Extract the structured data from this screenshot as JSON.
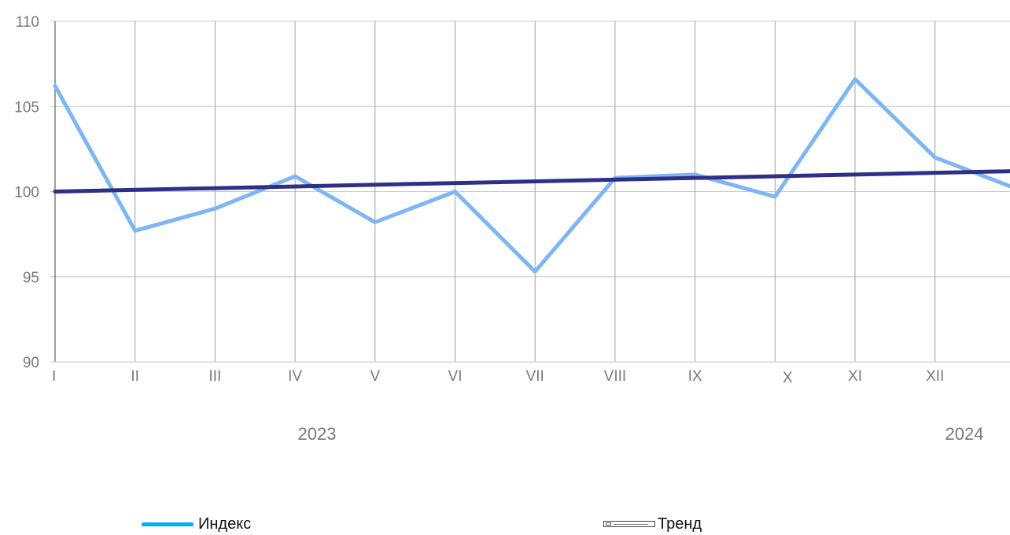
{
  "chart_data": {
    "type": "line",
    "categories": [
      "I",
      "II",
      "III",
      "IV",
      "V",
      "VI",
      "VII",
      "VIII",
      "IX",
      "X",
      "XI",
      "XII"
    ],
    "year_labels": [
      "2023",
      "2024"
    ],
    "ylim": [
      90,
      110
    ],
    "yticks": [
      90,
      95,
      100,
      105,
      110
    ],
    "grid": true,
    "legend_position": "bottom",
    "series": [
      {
        "name": "Индекс",
        "color": "#7eb6f4",
        "x": [
          0,
          1,
          2,
          3,
          4,
          5,
          6,
          7,
          8,
          9,
          10,
          11,
          12
        ],
        "values": [
          106.2,
          97.7,
          99.0,
          100.9,
          98.2,
          100.0,
          95.3,
          100.8,
          101.0,
          99.7,
          106.6,
          102.0,
          100.2
        ]
      },
      {
        "name": "Тренд",
        "color": "#2e2f86",
        "x": [
          0,
          12
        ],
        "values": [
          100.0,
          101.2
        ]
      }
    ]
  },
  "legend": {
    "items": [
      {
        "label": "Индекс",
        "color": "#00b0f0"
      },
      {
        "label": "Тренд",
        "icon": "broken-image-icon"
      }
    ]
  }
}
